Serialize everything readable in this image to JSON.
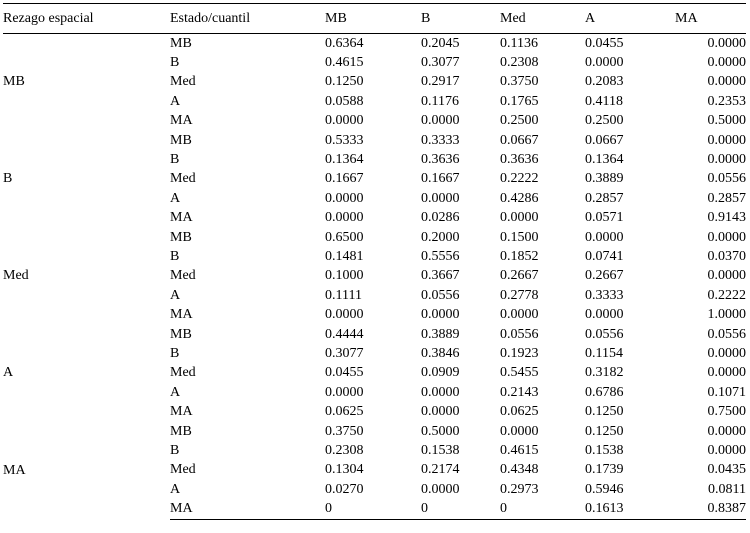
{
  "colors": {
    "background": "#ffffff",
    "text": "#000000",
    "rule": "#000000"
  },
  "table": {
    "col1_header": "Rezago espacial",
    "col2_header": "Estado/cuantil",
    "value_headers": [
      "MB",
      "B",
      "Med",
      "A",
      "MA"
    ],
    "groups": [
      {
        "label": "MB",
        "rows": [
          {
            "label": "MB",
            "values": [
              "0.6364",
              "0.2045",
              "0.1136",
              "0.0455",
              "0.0000"
            ]
          },
          {
            "label": "B",
            "values": [
              "0.4615",
              "0.3077",
              "0.2308",
              "0.0000",
              "0.0000"
            ]
          },
          {
            "label": "Med",
            "values": [
              "0.1250",
              "0.2917",
              "0.3750",
              "0.2083",
              "0.0000"
            ]
          },
          {
            "label": "A",
            "values": [
              "0.0588",
              "0.1176",
              "0.1765",
              "0.4118",
              "0.2353"
            ]
          },
          {
            "label": "MA",
            "values": [
              "0.0000",
              "0.0000",
              "0.2500",
              "0.2500",
              "0.5000"
            ]
          }
        ]
      },
      {
        "label": "B",
        "rows": [
          {
            "label": "MB",
            "values": [
              "0.5333",
              "0.3333",
              "0.0667",
              "0.0667",
              "0.0000"
            ]
          },
          {
            "label": "B",
            "values": [
              "0.1364",
              "0.3636",
              "0.3636",
              "0.1364",
              "0.0000"
            ]
          },
          {
            "label": "Med",
            "values": [
              "0.1667",
              "0.1667",
              "0.2222",
              "0.3889",
              "0.0556"
            ]
          },
          {
            "label": "A",
            "values": [
              "0.0000",
              "0.0000",
              "0.4286",
              "0.2857",
              "0.2857"
            ]
          },
          {
            "label": "MA",
            "values": [
              "0.0000",
              "0.0286",
              "0.0000",
              "0.0571",
              "0.9143"
            ]
          }
        ]
      },
      {
        "label": "Med",
        "rows": [
          {
            "label": "MB",
            "values": [
              "0.6500",
              "0.2000",
              "0.1500",
              "0.0000",
              "0.0000"
            ]
          },
          {
            "label": "B",
            "values": [
              "0.1481",
              "0.5556",
              "0.1852",
              "0.0741",
              "0.0370"
            ]
          },
          {
            "label": "Med",
            "values": [
              "0.1000",
              "0.3667",
              "0.2667",
              "0.2667",
              "0.0000"
            ]
          },
          {
            "label": "A",
            "values": [
              "0.1111",
              "0.0556",
              "0.2778",
              "0.3333",
              "0.2222"
            ]
          },
          {
            "label": "MA",
            "values": [
              "0.0000",
              "0.0000",
              "0.0000",
              "0.0000",
              "1.0000"
            ]
          }
        ]
      },
      {
        "label": "A",
        "rows": [
          {
            "label": "MB",
            "values": [
              "0.4444",
              "0.3889",
              "0.0556",
              "0.0556",
              "0.0556"
            ]
          },
          {
            "label": "B",
            "values": [
              "0.3077",
              "0.3846",
              "0.1923",
              "0.1154",
              "0.0000"
            ]
          },
          {
            "label": "Med",
            "values": [
              "0.0455",
              "0.0909",
              "0.5455",
              "0.3182",
              "0.0000"
            ]
          },
          {
            "label": "A",
            "values": [
              "0.0000",
              "0.0000",
              "0.2143",
              "0.6786",
              "0.1071"
            ]
          },
          {
            "label": "MA",
            "values": [
              "0.0625",
              "0.0000",
              "0.0625",
              "0.1250",
              "0.7500"
            ]
          }
        ]
      },
      {
        "label": "MA",
        "rows": [
          {
            "label": "MB",
            "values": [
              "0.3750",
              "0.5000",
              "0.0000",
              "0.1250",
              "0.0000"
            ]
          },
          {
            "label": "B",
            "values": [
              "0.2308",
              "0.1538",
              "0.4615",
              "0.1538",
              "0.0000"
            ]
          },
          {
            "label": "Med",
            "values": [
              "0.1304",
              "0.2174",
              "0.4348",
              "0.1739",
              "0.0435"
            ]
          },
          {
            "label": "A",
            "values": [
              "0.0270",
              "0.0000",
              "0.2973",
              "0.5946",
              "0.0811"
            ]
          },
          {
            "label": "MA",
            "values": [
              "0",
              "0",
              "0",
              "0.1613",
              "0.8387"
            ]
          }
        ]
      }
    ]
  }
}
